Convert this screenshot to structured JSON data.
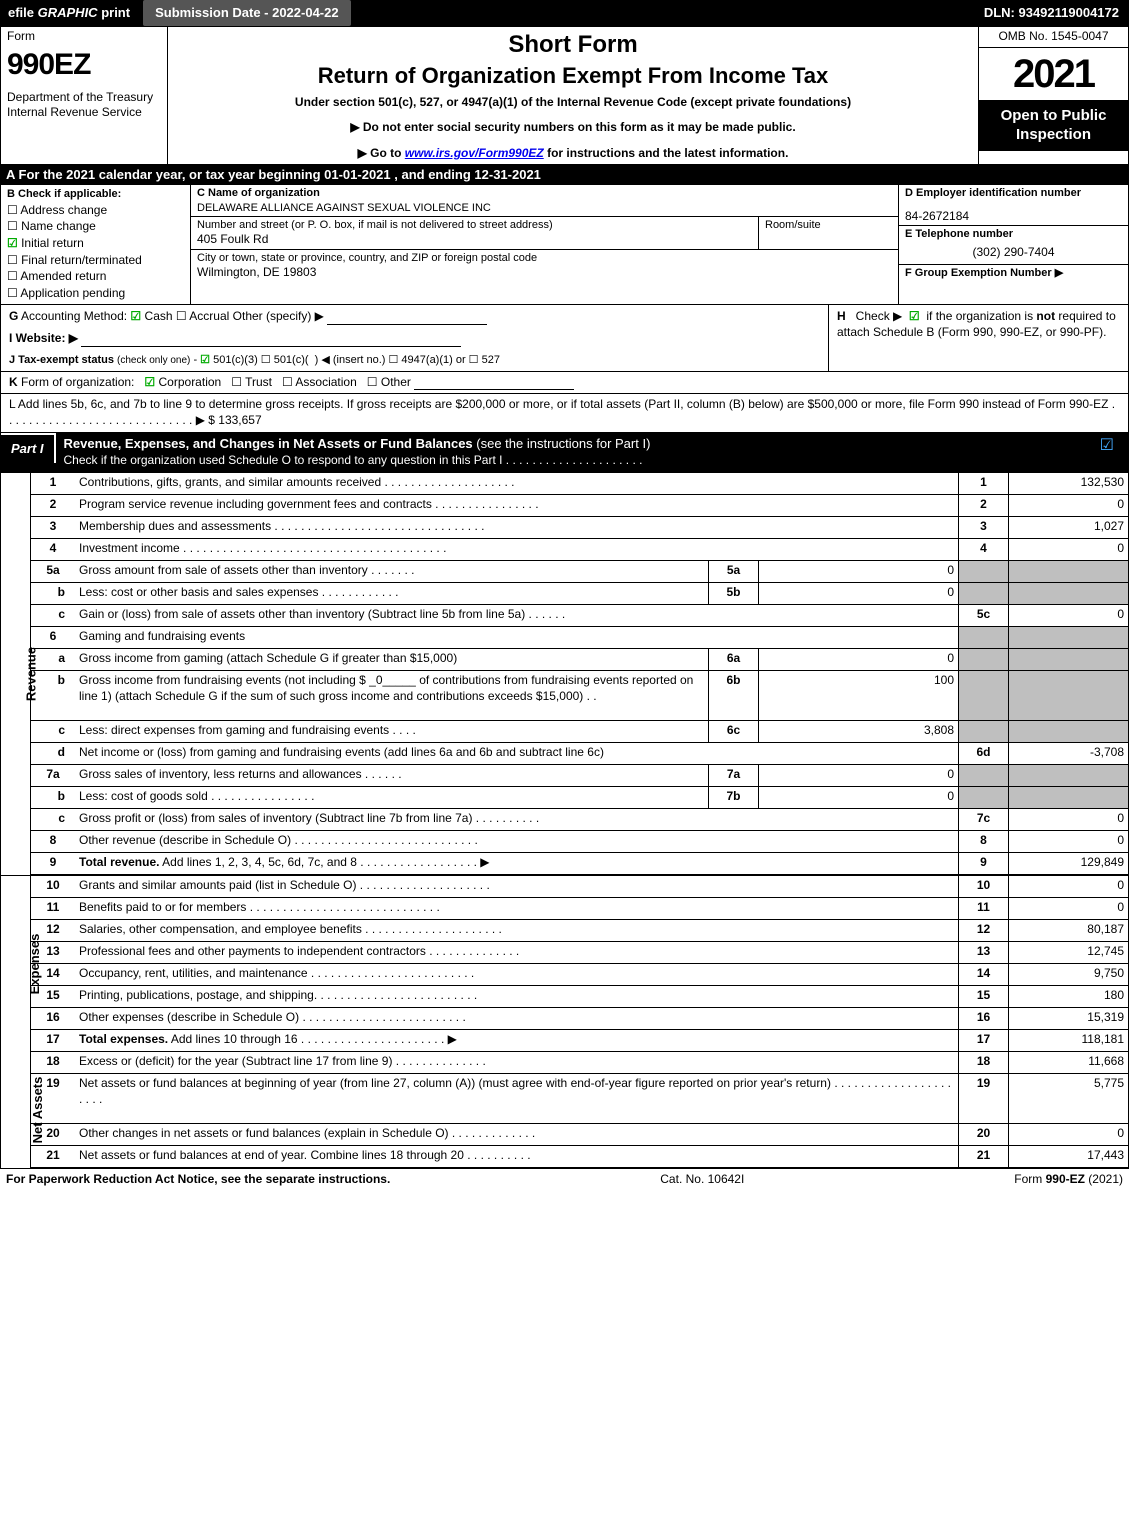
{
  "topbar": {
    "efile_prefix": "efile",
    "efile_suffix": " print",
    "efile_graphic": " GRAPHIC",
    "submission_label": "Submission Date - 2022-04-22",
    "dln": "DLN: 93492119004172"
  },
  "header": {
    "form": "Form",
    "form_num": "990EZ",
    "dept": "Department of the Treasury\nInternal Revenue Service",
    "title1": "Short Form",
    "title2": "Return of Organization Exempt From Income Tax",
    "sub1": "Under section 501(c), 527, or 4947(a)(1) of the Internal Revenue Code (except private foundations)",
    "note1": "▶ Do not enter social security numbers on this form as it may be made public.",
    "note2_pre": "▶ Go to ",
    "note2_link": "www.irs.gov/Form990EZ",
    "note2_post": " for instructions and the latest information.",
    "omb": "OMB No. 1545-0047",
    "year": "2021",
    "open": "Open to Public Inspection"
  },
  "rowA": "A  For the 2021 calendar year, or tax year beginning 01-01-2021  , and ending 12-31-2021",
  "B": {
    "label": "B  Check if applicable:",
    "items": [
      {
        "mark": "☐",
        "t": "Address change"
      },
      {
        "mark": "☐",
        "t": "Name change"
      },
      {
        "mark": "☑",
        "t": "Initial return",
        "green": true
      },
      {
        "mark": "☐",
        "t": "Final return/terminated"
      },
      {
        "mark": "☐",
        "t": "Amended return"
      },
      {
        "mark": "☐",
        "t": "Application pending"
      }
    ]
  },
  "C": {
    "name_lab": "C Name of organization",
    "name": "DELAWARE ALLIANCE AGAINST SEXUAL VIOLENCE INC",
    "addr_lab": "Number and street (or P. O. box, if mail is not delivered to street address)",
    "addr": "405 Foulk Rd",
    "room_lab": "Room/suite",
    "city_lab": "City or town, state or province, country, and ZIP or foreign postal code",
    "city": "Wilmington, DE  19803"
  },
  "D": {
    "ein_lab": "D Employer identification number",
    "ein": "84-2672184",
    "tel_lab": "E Telephone number",
    "tel": "(302) 290-7404",
    "grp_lab": "F Group Exemption Number   ▶",
    "grp": ""
  },
  "G": {
    "line": "G Accounting Method:   ☑ Cash  ☐ Accrual   Other (specify) ▶",
    "website": "I Website: ▶",
    "tax": "J Tax-exempt status (check only one) -  ☑ 501(c)(3)  ☐  501(c)(   )  ◀ (insert no.)  ☐  4947(a)(1) or  ☐  527"
  },
  "H": {
    "line": "H   Check ▶  ☑  if the organization is not required to attach Schedule B (Form 990, 990-EZ, or 990-PF)."
  },
  "K": "K Form of organization:   ☑ Corporation   ☐ Trust   ☐ Association   ☐ Other",
  "L": {
    "text": "L Add lines 5b, 6c, and 7b to line 9 to determine gross receipts. If gross receipts are $200,000 or more, or if total assets (Part II, column (B) below) are $500,000 or more, file Form 990 instead of Form 990-EZ  .  .  .  .  .  .  .  .  .  .  .  .  .  .  .  .  .  .  .  .  .  .  .  .  .  .  .  .  . ▶ $ 133,657"
  },
  "partI": {
    "tab": "Part I",
    "title": "Revenue, Expenses, and Changes in Net Assets or Fund Balances",
    "title_post": " (see the instructions for Part I)",
    "sub": "Check if the organization used Schedule O to respond to any question in this Part I .  .  .  .  .  .  .  .  .  .  .  .  .  .  .  .  .  .  .  .  .",
    "checkmark": "☑"
  },
  "tabs": {
    "revenue": "Revenue",
    "expenses": "Expenses",
    "netassets": "Net Assets"
  },
  "lines": [
    {
      "n": "1",
      "desc": "Contributions, gifts, grants, and similar amounts received  .  .  .  .  .  .  .  .  .  .  .  .  .  .  .  .  .  .  .  .",
      "rn": "1",
      "rv": "132,530"
    },
    {
      "n": "2",
      "desc": "Program service revenue including government fees and contracts  .  .  .  .  .  .  .  .  .  .  .  .  .  .  .  .",
      "rn": "2",
      "rv": "0"
    },
    {
      "n": "3",
      "desc": "Membership dues and assessments  .  .  .  .  .  .  .  .  .  .  .  .  .  .  .  .  .  .  .  .  .  .  .  .  .  .  .  .  .  .  .  .",
      "rn": "3",
      "rv": "1,027"
    },
    {
      "n": "4",
      "desc": "Investment income  .  .  .  .  .  .  .  .  .  .  .  .  .  .  .  .  .  .  .  .  .  .  .  .  .  .  .  .  .  .  .  .  .  .  .  .  .  .  .  .",
      "rn": "4",
      "rv": "0"
    },
    {
      "n": "5a",
      "desc": "Gross amount from sale of assets other than inventory  .  .  .  .  .  .  .",
      "mn": "5a",
      "mv": "0",
      "shaded": true
    },
    {
      "n": "b",
      "sub": true,
      "desc": "Less: cost or other basis and sales expenses  .  .  .  .  .  .  .  .  .  .  .  .",
      "mn": "5b",
      "mv": "0",
      "shaded": true
    },
    {
      "n": "c",
      "sub": true,
      "desc": "Gain or (loss) from sale of assets other than inventory (Subtract line 5b from line 5a)  .  .  .  .  .  .",
      "rn": "5c",
      "rv": "0"
    },
    {
      "n": "6",
      "desc": "Gaming and fundraising events",
      "shaded": true,
      "nomid": true
    },
    {
      "n": "a",
      "sub": true,
      "desc": "Gross income from gaming (attach Schedule G if greater than $15,000)",
      "mn": "6a",
      "mv": "0",
      "shaded": true
    },
    {
      "n": "b",
      "sub": true,
      "desc": "Gross income from fundraising events (not including $ _0_____ of contributions from fundraising events reported on line 1) (attach Schedule G if the sum of such gross income and contributions exceeds $15,000)   .  .   ",
      "mn": "6b",
      "mv": "100",
      "shaded": true,
      "tall": true
    },
    {
      "n": "c",
      "sub": true,
      "desc": "Less: direct expenses from gaming and fundraising events     .  .  .  .",
      "mn": "6c",
      "mv": "3,808",
      "shaded": true
    },
    {
      "n": "d",
      "sub": true,
      "desc": "Net income or (loss) from gaming and fundraising events (add lines 6a and 6b and subtract line 6c)",
      "rn": "6d",
      "rv": "-3,708"
    },
    {
      "n": "7a",
      "desc": "Gross sales of inventory, less returns and allowances  .  .  .  .  .  .",
      "mn": "7a",
      "mv": "0",
      "shaded": true
    },
    {
      "n": "b",
      "sub": true,
      "desc": "Less: cost of goods sold          .  .  .  .  .  .  .  .  .  .  .  .  .  .  .  .",
      "mn": "7b",
      "mv": "0",
      "shaded": true
    },
    {
      "n": "c",
      "sub": true,
      "desc": "Gross profit or (loss) from sales of inventory (Subtract line 7b from line 7a)  .  .  .  .  .  .  .  .  .  .",
      "rn": "7c",
      "rv": "0"
    },
    {
      "n": "8",
      "desc": "Other revenue (describe in Schedule O)  .  .  .  .  .  .  .  .  .  .  .  .  .  .  .  .  .  .  .  .  .  .  .  .  .  .  .  .",
      "rn": "8",
      "rv": "0"
    },
    {
      "n": "9",
      "desc": "Total revenue. Add lines 1, 2, 3, 4, 5c, 6d, 7c, and 8  .  .  .  .  .  .  .  .  .  .  .  .  .  .  .  .  .  .",
      "bold": true,
      "arrow": true,
      "rn": "9",
      "rv": "129,849"
    }
  ],
  "exp_lines": [
    {
      "n": "10",
      "desc": "Grants and similar amounts paid (list in Schedule O)  .  .  .  .  .  .  .  .  .  .  .  .  .  .  .  .  .  .  .  .",
      "rn": "10",
      "rv": "0"
    },
    {
      "n": "11",
      "desc": "Benefits paid to or for members    .  .  .  .  .  .  .  .  .  .  .  .  .  .  .  .  .  .  .  .  .  .  .  .  .  .  .  .  .",
      "rn": "11",
      "rv": "0"
    },
    {
      "n": "12",
      "desc": "Salaries, other compensation, and employee benefits .  .  .  .  .  .  .  .  .  .  .  .  .  .  .  .  .  .  .  .  .",
      "rn": "12",
      "rv": "80,187"
    },
    {
      "n": "13",
      "desc": "Professional fees and other payments to independent contractors  .  .  .  .  .  .  .  .  .  .  .  .  .  .",
      "rn": "13",
      "rv": "12,745"
    },
    {
      "n": "14",
      "desc": "Occupancy, rent, utilities, and maintenance .  .  .  .  .  .  .  .  .  .  .  .  .  .  .  .  .  .  .  .  .  .  .  .  .",
      "rn": "14",
      "rv": "9,750"
    },
    {
      "n": "15",
      "desc": "Printing, publications, postage, and shipping.  .  .  .  .  .  .  .  .  .  .  .  .  .  .  .  .  .  .  .  .  .  .  .  .",
      "rn": "15",
      "rv": "180"
    },
    {
      "n": "16",
      "desc": "Other expenses (describe in Schedule O)    .  .  .  .  .  .  .  .  .  .  .  .  .  .  .  .  .  .  .  .  .  .  .  .  .",
      "rn": "16",
      "rv": "15,319"
    },
    {
      "n": "17",
      "desc": "Total expenses. Add lines 10 through 16    .  .  .  .  .  .  .  .  .  .  .  .  .  .  .  .  .  .  .  .  .  .",
      "bold": true,
      "arrow": true,
      "rn": "17",
      "rv": "118,181"
    }
  ],
  "net_lines": [
    {
      "n": "18",
      "desc": "Excess or (deficit) for the year (Subtract line 17 from line 9)        .  .  .  .  .  .  .  .  .  .  .  .  .  .",
      "rn": "18",
      "rv": "11,668"
    },
    {
      "n": "19",
      "desc": "Net assets or fund balances at beginning of year (from line 27, column (A)) (must agree with end-of-year figure reported on prior year's return) .  .  .  .  .  .  .  .  .  .  .  .  .  .  .  .  .  .  .  .  .  .",
      "rn": "19",
      "rv": "5,775",
      "tall": true
    },
    {
      "n": "20",
      "desc": "Other changes in net assets or fund balances (explain in Schedule O) .  .  .  .  .  .  .  .  .  .  .  .  .",
      "rn": "20",
      "rv": "0"
    },
    {
      "n": "21",
      "desc": "Net assets or fund balances at end of year. Combine lines 18 through 20 .  .  .  .  .  .  .  .  .  .",
      "rn": "21",
      "rv": "17,443"
    }
  ],
  "footer": {
    "left": "For Paperwork Reduction Act Notice, see the separate instructions.",
    "center": "Cat. No. 10642I",
    "right_pre": "Form ",
    "right_bold": "990-EZ",
    "right_post": " (2021)"
  }
}
